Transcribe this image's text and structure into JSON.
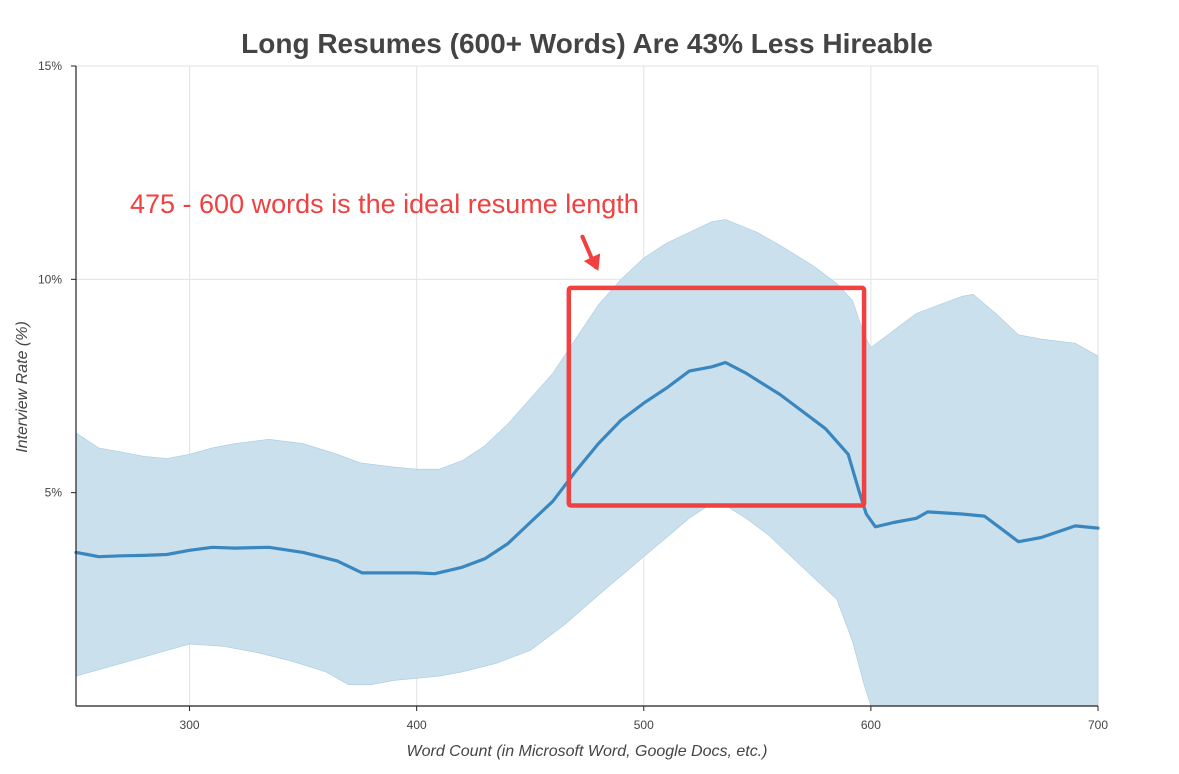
{
  "chart_data": {
    "type": "line",
    "title": "Long Resumes (600+ Words) Are 43% Less Hireable",
    "xlabel": "Word Count (in Microsoft Word, Google Docs, etc.)",
    "ylabel": "Interview Rate (%)",
    "xlim": [
      250,
      700
    ],
    "ylim": [
      0,
      15
    ],
    "x_ticks": [
      300,
      400,
      500,
      600,
      700
    ],
    "x_tick_labels": [
      "300",
      "400",
      "500",
      "600",
      "700"
    ],
    "y_ticks": [
      5,
      10,
      15
    ],
    "y_tick_labels": [
      "5%",
      "10%",
      "15%"
    ],
    "grid": true,
    "colors": {
      "line": "#3a87c0",
      "band": "#c7deec",
      "annotation": "#f04040"
    },
    "series": [
      {
        "values": [
          [
            250,
            3.6
          ],
          [
            255,
            3.55
          ],
          [
            260,
            3.5
          ],
          [
            270,
            3.52
          ],
          [
            280,
            3.53
          ],
          [
            290,
            3.55
          ],
          [
            300,
            3.65
          ],
          [
            310,
            3.72
          ],
          [
            320,
            3.7
          ],
          [
            335,
            3.72
          ],
          [
            350,
            3.6
          ],
          [
            365,
            3.4
          ],
          [
            376,
            3.12
          ],
          [
            385,
            3.12
          ],
          [
            400,
            3.12
          ],
          [
            408,
            3.1
          ],
          [
            420,
            3.25
          ],
          [
            430,
            3.45
          ],
          [
            440,
            3.8
          ],
          [
            450,
            4.3
          ],
          [
            460,
            4.8
          ],
          [
            470,
            5.5
          ],
          [
            480,
            6.15
          ],
          [
            490,
            6.7
          ],
          [
            500,
            7.1
          ],
          [
            510,
            7.45
          ],
          [
            520,
            7.85
          ],
          [
            530,
            7.95
          ],
          [
            536,
            8.05
          ],
          [
            545,
            7.8
          ],
          [
            560,
            7.3
          ],
          [
            570,
            6.9
          ],
          [
            580,
            6.5
          ],
          [
            590,
            5.9
          ],
          [
            595,
            5.0
          ],
          [
            598,
            4.5
          ],
          [
            602,
            4.2
          ],
          [
            610,
            4.3
          ],
          [
            620,
            4.4
          ],
          [
            625,
            4.55
          ],
          [
            640,
            4.5
          ],
          [
            650,
            4.45
          ],
          [
            660,
            4.05
          ],
          [
            665,
            3.85
          ],
          [
            675,
            3.95
          ],
          [
            690,
            4.22
          ],
          [
            700,
            4.17
          ]
        ]
      }
    ],
    "band": {
      "upper": [
        [
          250,
          6.4
        ],
        [
          260,
          6.05
        ],
        [
          270,
          5.95
        ],
        [
          280,
          5.85
        ],
        [
          290,
          5.8
        ],
        [
          300,
          5.9
        ],
        [
          310,
          6.05
        ],
        [
          320,
          6.15
        ],
        [
          335,
          6.25
        ],
        [
          350,
          6.15
        ],
        [
          365,
          5.9
        ],
        [
          375,
          5.7
        ],
        [
          390,
          5.6
        ],
        [
          400,
          5.55
        ],
        [
          410,
          5.55
        ],
        [
          420,
          5.75
        ],
        [
          430,
          6.1
        ],
        [
          440,
          6.6
        ],
        [
          450,
          7.2
        ],
        [
          460,
          7.8
        ],
        [
          470,
          8.6
        ],
        [
          480,
          9.4
        ],
        [
          490,
          10.0
        ],
        [
          500,
          10.5
        ],
        [
          510,
          10.85
        ],
        [
          520,
          11.1
        ],
        [
          530,
          11.35
        ],
        [
          536,
          11.4
        ],
        [
          550,
          11.1
        ],
        [
          560,
          10.8
        ],
        [
          575,
          10.3
        ],
        [
          585,
          9.9
        ],
        [
          592,
          9.5
        ],
        [
          597,
          8.7
        ],
        [
          600,
          8.4
        ],
        [
          610,
          8.8
        ],
        [
          620,
          9.2
        ],
        [
          630,
          9.4
        ],
        [
          640,
          9.6
        ],
        [
          645,
          9.65
        ],
        [
          655,
          9.2
        ],
        [
          665,
          8.7
        ],
        [
          675,
          8.6
        ],
        [
          690,
          8.5
        ],
        [
          700,
          8.2
        ]
      ],
      "lower": [
        [
          250,
          0.7
        ],
        [
          260,
          0.85
        ],
        [
          270,
          1.0
        ],
        [
          280,
          1.15
        ],
        [
          290,
          1.3
        ],
        [
          300,
          1.45
        ],
        [
          315,
          1.4
        ],
        [
          330,
          1.25
        ],
        [
          345,
          1.05
        ],
        [
          360,
          0.8
        ],
        [
          370,
          0.5
        ],
        [
          380,
          0.5
        ],
        [
          390,
          0.6
        ],
        [
          400,
          0.65
        ],
        [
          410,
          0.7
        ],
        [
          420,
          0.8
        ],
        [
          435,
          1.0
        ],
        [
          450,
          1.3
        ],
        [
          465,
          1.9
        ],
        [
          480,
          2.6
        ],
        [
          490,
          3.05
        ],
        [
          500,
          3.5
        ],
        [
          510,
          3.95
        ],
        [
          520,
          4.4
        ],
        [
          530,
          4.75
        ],
        [
          536,
          4.7
        ],
        [
          545,
          4.4
        ],
        [
          555,
          4.0
        ],
        [
          565,
          3.5
        ],
        [
          575,
          3.0
        ],
        [
          585,
          2.5
        ],
        [
          592,
          1.5
        ],
        [
          597,
          0.5
        ],
        [
          600,
          0.0
        ],
        [
          700,
          0.0
        ]
      ]
    },
    "annotations": [
      {
        "text": "475 - 600 words is the ideal resume length",
        "box": {
          "x": [
            467,
            597
          ],
          "y": [
            4.7,
            9.8
          ]
        },
        "arrow": {
          "from": [
            473,
            11.0
          ],
          "to": [
            480,
            10.2
          ]
        }
      }
    ]
  }
}
